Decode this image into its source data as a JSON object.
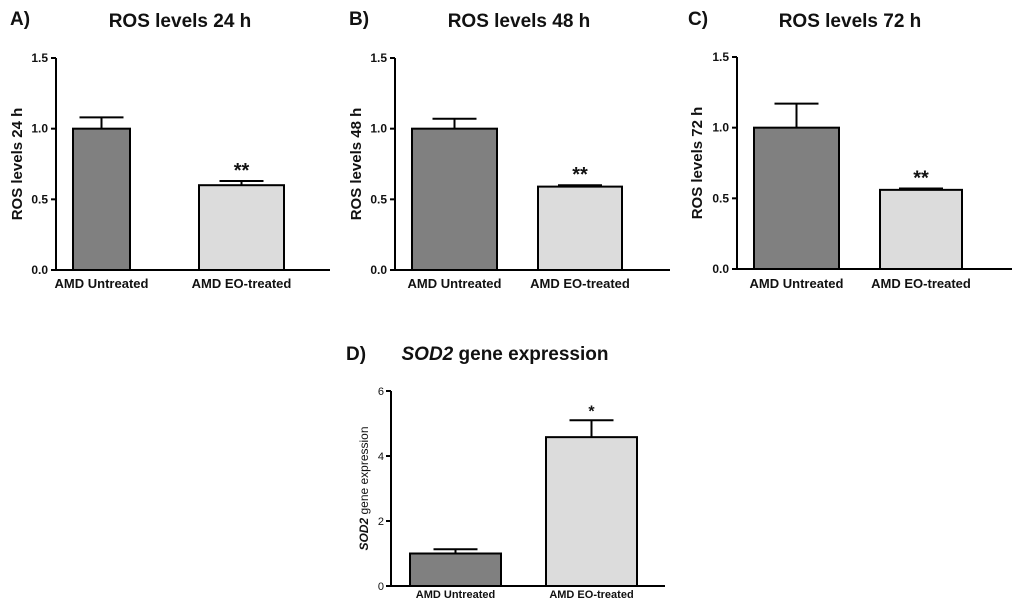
{
  "chart_data": [
    {
      "id": "A",
      "type": "bar",
      "panel_label": "A)",
      "title": "ROS levels 24 h",
      "title_italic": "",
      "ylabel": "ROS levels 24 h",
      "ylabel_italic": "",
      "categories": [
        "AMD Untreated",
        "AMD EO-treated"
      ],
      "values": [
        1.0,
        0.6
      ],
      "errors": [
        0.08,
        0.03
      ],
      "significance": [
        "",
        "**"
      ],
      "ylim": [
        0,
        1.5
      ],
      "yticks": [
        0.0,
        0.5,
        1.0,
        1.5
      ],
      "ytick_labels": [
        "0.0",
        "0.5",
        "1.0",
        "1.5"
      ],
      "colors": [
        "#808080",
        "#dcdcdc"
      ]
    },
    {
      "id": "B",
      "type": "bar",
      "panel_label": "B)",
      "title": "ROS levels 48 h",
      "title_italic": "",
      "ylabel": "ROS levels 48 h",
      "ylabel_italic": "",
      "categories": [
        "AMD Untreated",
        "AMD EO-treated"
      ],
      "values": [
        1.0,
        0.59
      ],
      "errors": [
        0.07,
        0.01
      ],
      "significance": [
        "",
        "**"
      ],
      "ylim": [
        0,
        1.5
      ],
      "yticks": [
        0.0,
        0.5,
        1.0,
        1.5
      ],
      "ytick_labels": [
        "0.0",
        "0.5",
        "1.0",
        "1.5"
      ],
      "colors": [
        "#808080",
        "#dcdcdc"
      ]
    },
    {
      "id": "C",
      "type": "bar",
      "panel_label": "C)",
      "title": "ROS levels 72 h",
      "title_italic": "",
      "ylabel": "ROS levels 72 h",
      "ylabel_italic": "",
      "categories": [
        "AMD Untreated",
        "AMD EO-treated"
      ],
      "values": [
        1.0,
        0.56
      ],
      "errors": [
        0.17,
        0.01
      ],
      "significance": [
        "",
        "**"
      ],
      "ylim": [
        0,
        1.5
      ],
      "yticks": [
        0.0,
        0.5,
        1.0,
        1.5
      ],
      "ytick_labels": [
        "0.0",
        "0.5",
        "1.0",
        "1.5"
      ],
      "colors": [
        "#808080",
        "#dcdcdc"
      ]
    },
    {
      "id": "D",
      "type": "bar",
      "panel_label": "D)",
      "title": " gene expression",
      "title_italic": "SOD2",
      "ylabel": " gene expression",
      "ylabel_italic": "SOD2",
      "categories": [
        "AMD Untreated",
        "AMD EO-treated"
      ],
      "values": [
        1.0,
        4.58
      ],
      "errors": [
        0.13,
        0.52
      ],
      "significance": [
        "",
        "*"
      ],
      "ylim": [
        0,
        6
      ],
      "yticks": [
        0,
        2,
        4,
        6
      ],
      "ytick_labels": [
        "0",
        "2",
        "4",
        "6"
      ],
      "colors": [
        "#808080",
        "#dcdcdc"
      ]
    }
  ]
}
